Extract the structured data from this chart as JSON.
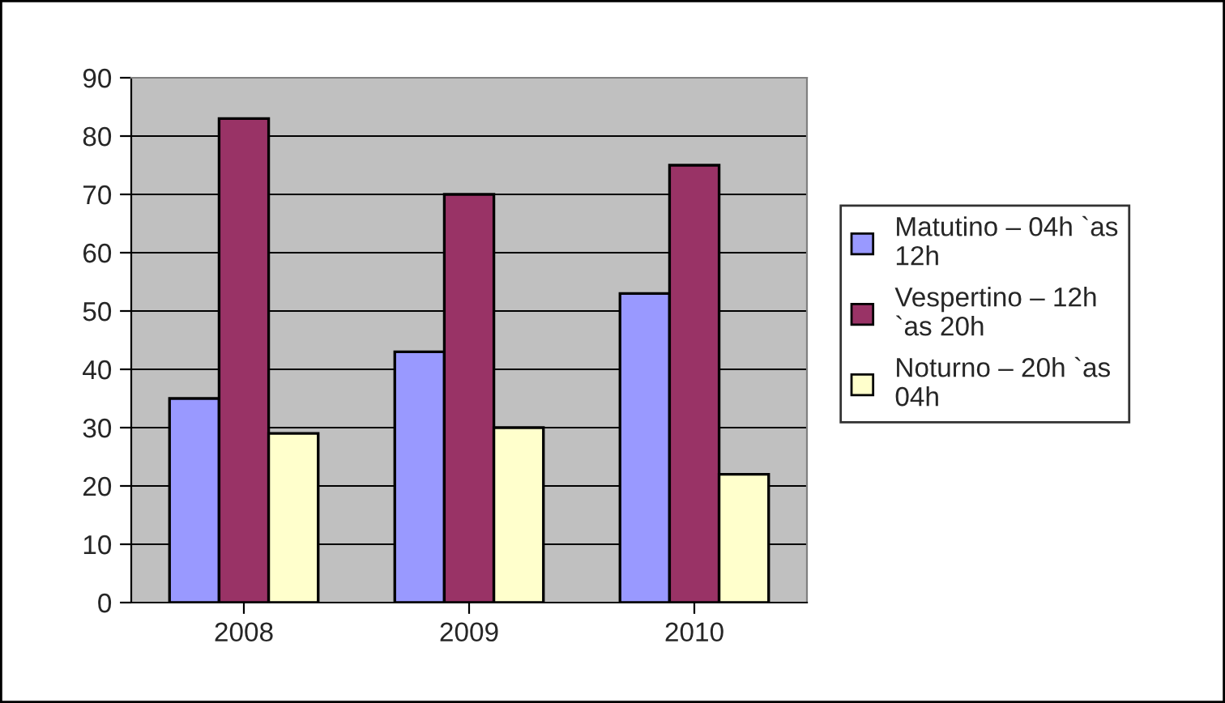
{
  "chart_data": {
    "type": "bar",
    "categories": [
      "2008",
      "2009",
      "2010"
    ],
    "series": [
      {
        "name": "Matutino – 04h `as\n12h",
        "color": "#9999ff",
        "values": [
          35,
          43,
          53
        ]
      },
      {
        "name": "Vespertino – 12h\n`as 20h",
        "color": "#993366",
        "values": [
          83,
          70,
          75
        ]
      },
      {
        "name": "Noturno – 20h `as\n04h",
        "color": "#ffffcc",
        "values": [
          29,
          30,
          22
        ]
      }
    ],
    "ylim": [
      0,
      90
    ],
    "yticks": [
      0,
      10,
      20,
      30,
      40,
      50,
      60,
      70,
      80,
      90
    ],
    "grid": "y",
    "legend": "right"
  }
}
